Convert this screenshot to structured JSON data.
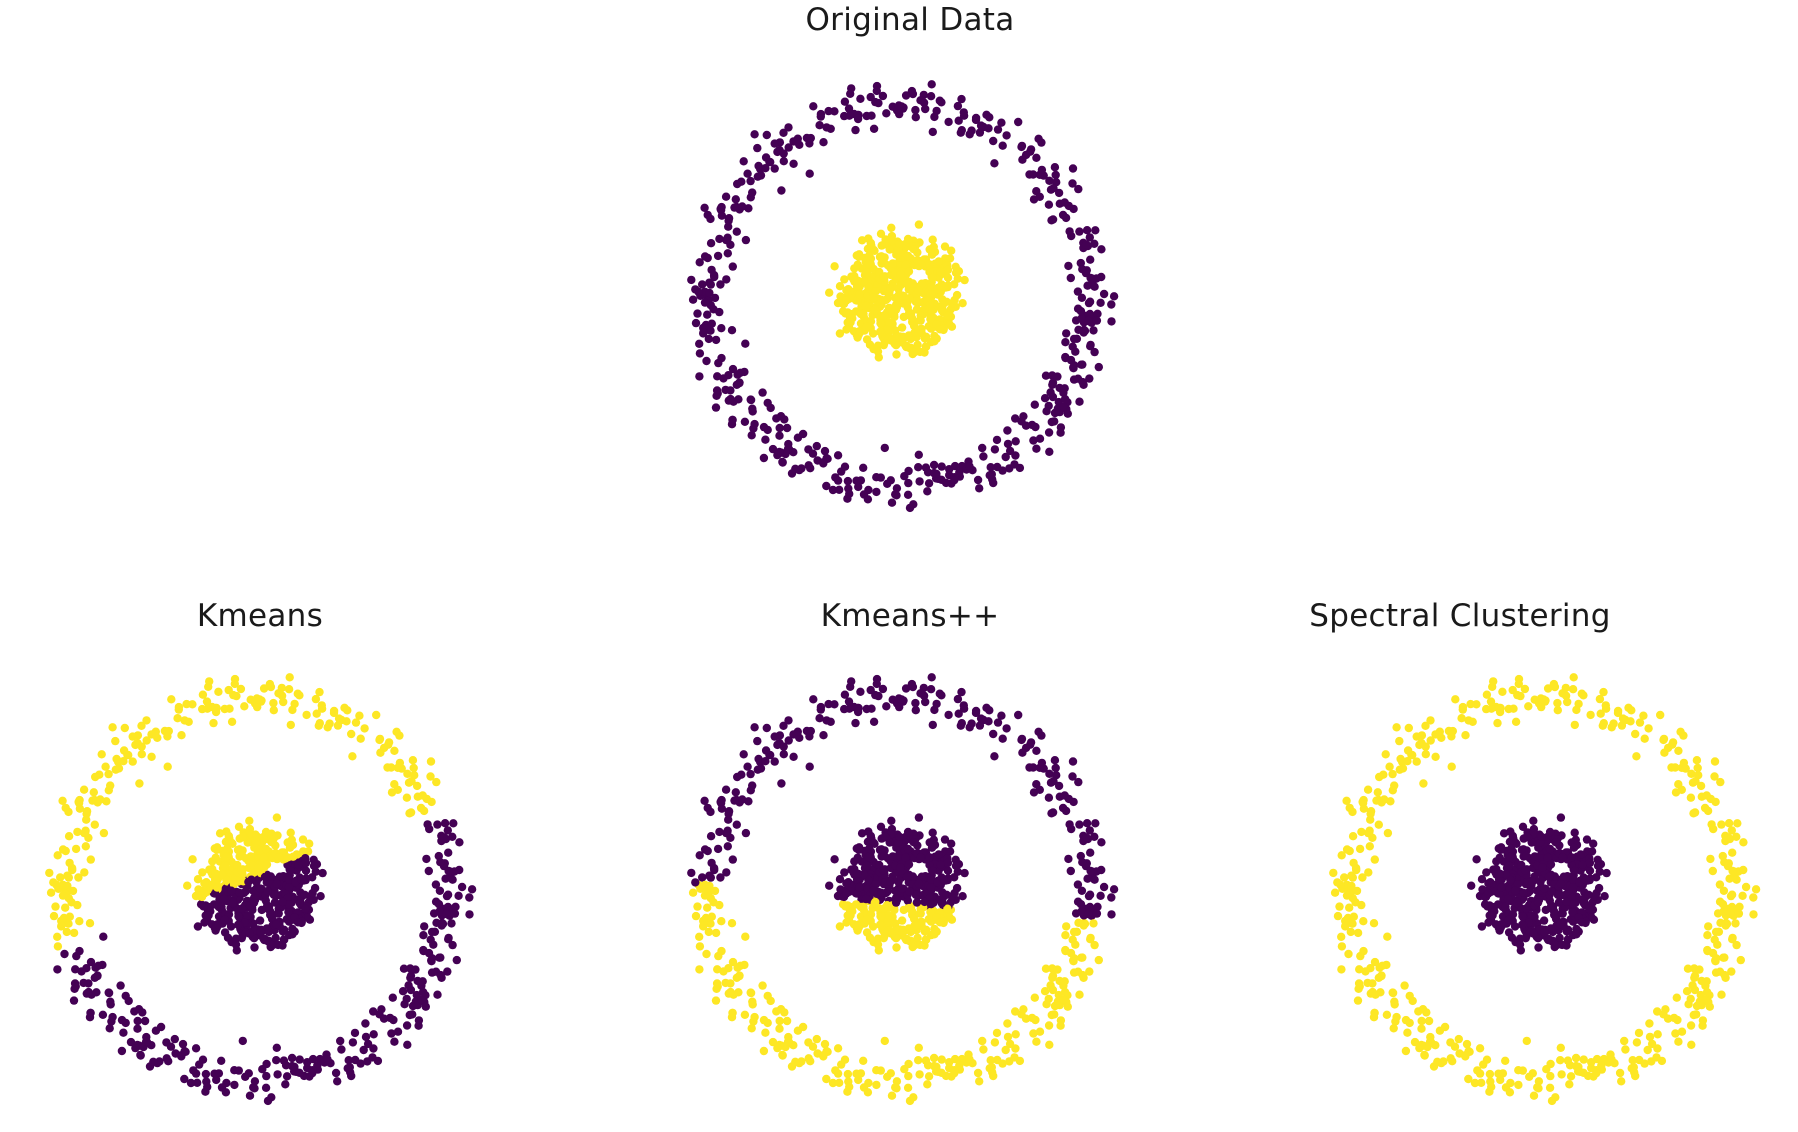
{
  "colors": {
    "outer": "#440154",
    "inner": "#fde725"
  },
  "chart_data": [
    {
      "type": "scatter",
      "title": "Original Data",
      "xlim": [
        -1.2,
        1.2
      ],
      "ylim": [
        -1.2,
        1.2
      ],
      "axes": "off",
      "grid": false,
      "series": [
        {
          "cluster": 0,
          "color": "#440154",
          "shape": "ring",
          "radius": 1.0,
          "noise": 0.06,
          "count": 500
        },
        {
          "cluster": 1,
          "color": "#fde725",
          "shape": "disk",
          "radius": 0.3,
          "noise": 0.06,
          "count": 500
        }
      ]
    },
    {
      "type": "scatter",
      "title": "Kmeans",
      "xlim": [
        -1.2,
        1.2
      ],
      "ylim": [
        -1.2,
        1.2
      ],
      "axes": "off",
      "grid": false,
      "assignment": "linear split: yellow where -0.36*x + 0.93*y > 0.06",
      "series": [
        {
          "cluster": 0,
          "color": "#440154"
        },
        {
          "cluster": 1,
          "color": "#fde725"
        }
      ]
    },
    {
      "type": "scatter",
      "title": "Kmeans++",
      "xlim": [
        -1.2,
        1.2
      ],
      "ylim": [
        -1.2,
        1.2
      ],
      "axes": "off",
      "grid": false,
      "assignment": "linear split: yellow where 0.10*x + 0.995*y < -0.08",
      "series": [
        {
          "cluster": 0,
          "color": "#440154"
        },
        {
          "cluster": 1,
          "color": "#fde725"
        }
      ]
    },
    {
      "type": "scatter",
      "title": "Spectral Clustering",
      "xlim": [
        -1.2,
        1.2
      ],
      "ylim": [
        -1.2,
        1.2
      ],
      "axes": "off",
      "grid": false,
      "assignment": "ring = yellow, disk = purple",
      "series": [
        {
          "cluster": 0,
          "color": "#440154"
        },
        {
          "cluster": 1,
          "color": "#fde725"
        }
      ]
    }
  ]
}
